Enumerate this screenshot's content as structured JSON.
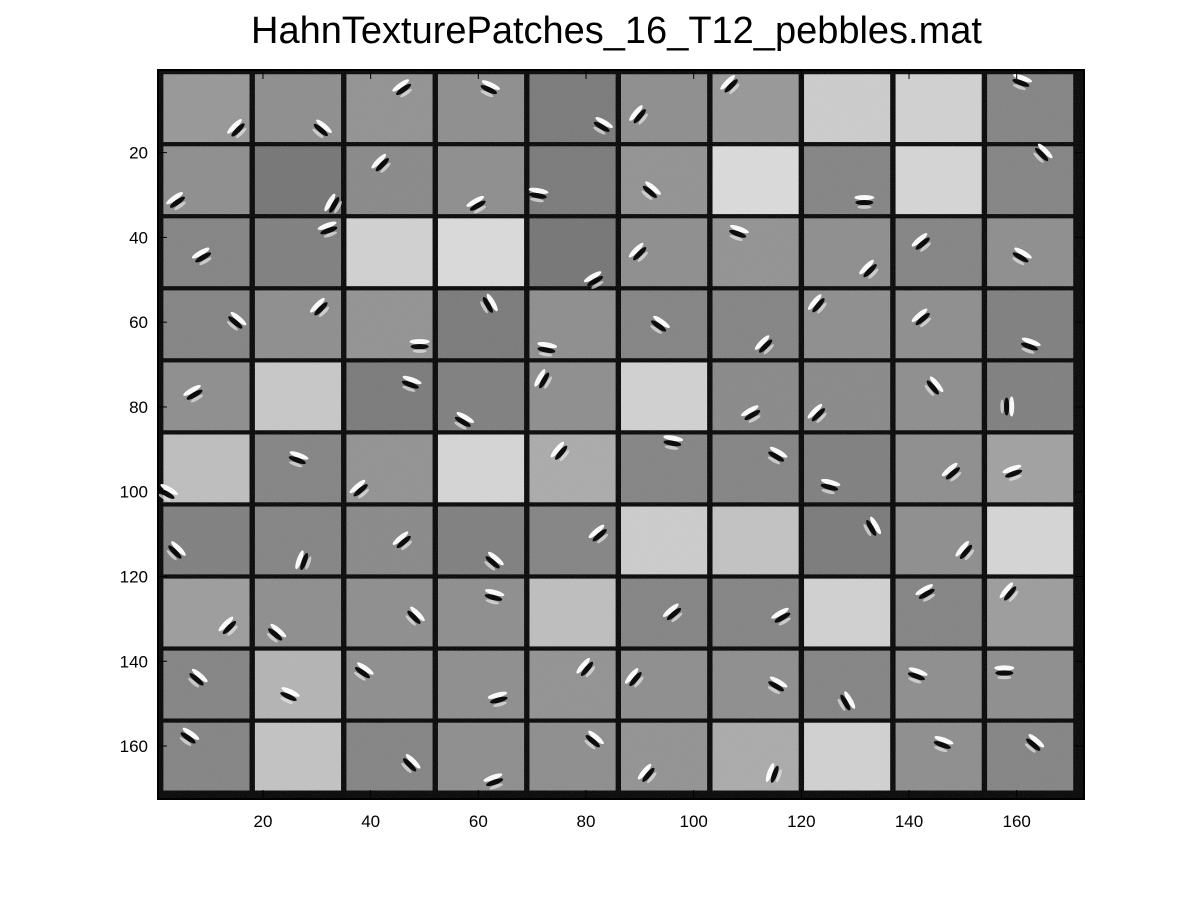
{
  "chart_data": {
    "type": "heatmap",
    "title": "HahnTexturePatches_16_T12_pebbles.mat",
    "xlabel": "",
    "ylabel": "",
    "xlim": [
      0.5,
      172.5
    ],
    "ylim": [
      0.5,
      172.5
    ],
    "x_reversed": false,
    "y_reversed": true,
    "colormap": "gray",
    "grid_rows": 10,
    "grid_cols": 10,
    "patch_size": 16,
    "separator": 1,
    "separator_color": "#000000",
    "x_ticks": [
      20,
      40,
      60,
      80,
      100,
      120,
      140,
      160
    ],
    "x_tick_labels": [
      "20",
      "40",
      "60",
      "80",
      "100",
      "120",
      "140",
      "160"
    ],
    "y_ticks": [
      20,
      40,
      60,
      80,
      100,
      120,
      140,
      160
    ],
    "y_tick_labels": [
      "20",
      "40",
      "60",
      "80",
      "100",
      "120",
      "140",
      "160"
    ],
    "patch_background_gray": [
      [
        150,
        140,
        145,
        140,
        120,
        140,
        150,
        205,
        210,
        130
      ],
      [
        140,
        115,
        135,
        140,
        120,
        145,
        220,
        130,
        215,
        130
      ],
      [
        130,
        125,
        210,
        220,
        115,
        140,
        145,
        140,
        130,
        140
      ],
      [
        130,
        140,
        145,
        120,
        140,
        130,
        130,
        140,
        140,
        125
      ],
      [
        140,
        200,
        120,
        125,
        140,
        210,
        135,
        135,
        140,
        125
      ],
      [
        190,
        130,
        145,
        215,
        170,
        130,
        130,
        125,
        140,
        160
      ],
      [
        125,
        130,
        135,
        125,
        130,
        205,
        195,
        120,
        140,
        215
      ],
      [
        155,
        140,
        140,
        140,
        190,
        130,
        130,
        210,
        130,
        155
      ],
      [
        130,
        180,
        140,
        140,
        145,
        140,
        140,
        130,
        140,
        140
      ],
      [
        130,
        195,
        130,
        140,
        140,
        145,
        170,
        210,
        140,
        130
      ]
    ],
    "filter_marks": [
      [
        {
          "r": 0,
          "c": 0,
          "u": 0.85,
          "v": 0.8,
          "a": -45
        },
        {
          "r": 0,
          "c": 1,
          "u": 0.78,
          "v": 0.8,
          "a": 40
        },
        {
          "r": 0,
          "c": 2,
          "u": 0.65,
          "v": 0.2,
          "a": -35
        },
        {
          "r": 0,
          "c": 3,
          "u": 0.6,
          "v": 0.2,
          "a": 25
        },
        {
          "r": 0,
          "c": 4,
          "u": 0.85,
          "v": 0.75,
          "a": 30
        },
        {
          "r": 0,
          "c": 5,
          "u": 0.2,
          "v": 0.6,
          "a": -50
        },
        {
          "r": 0,
          "c": 6,
          "u": 0.2,
          "v": 0.15,
          "a": -45
        },
        {
          "r": 0,
          "c": 9,
          "u": 0.4,
          "v": 0.1,
          "a": 20
        }
      ],
      [
        {
          "r": 1,
          "c": 0,
          "u": 0.15,
          "v": 0.8,
          "a": -35
        },
        {
          "r": 1,
          "c": 1,
          "u": 0.9,
          "v": 0.85,
          "a": -60
        },
        {
          "r": 1,
          "c": 2,
          "u": 0.4,
          "v": 0.25,
          "a": -45
        },
        {
          "r": 1,
          "c": 3,
          "u": 0.45,
          "v": 0.85,
          "a": -30
        },
        {
          "r": 1,
          "c": 4,
          "u": 0.1,
          "v": 0.7,
          "a": 10
        },
        {
          "r": 1,
          "c": 5,
          "u": 0.35,
          "v": 0.65,
          "a": 40
        },
        {
          "r": 1,
          "c": 7,
          "u": 0.7,
          "v": 0.8,
          "a": 0
        },
        {
          "r": 1,
          "c": 9,
          "u": 0.65,
          "v": 0.1,
          "a": 45
        }
      ],
      [
        {
          "r": 2,
          "c": 0,
          "u": 0.45,
          "v": 0.55,
          "a": -30
        },
        {
          "r": 2,
          "c": 1,
          "u": 0.85,
          "v": 0.15,
          "a": -20
        },
        {
          "r": 2,
          "c": 5,
          "u": 0.2,
          "v": 0.5,
          "a": -45
        },
        {
          "r": 2,
          "c": 6,
          "u": 0.3,
          "v": 0.2,
          "a": 20
        },
        {
          "r": 2,
          "c": 7,
          "u": 0.75,
          "v": 0.75,
          "a": -45
        },
        {
          "r": 2,
          "c": 8,
          "u": 0.3,
          "v": 0.35,
          "a": -40
        },
        {
          "r": 2,
          "c": 9,
          "u": 0.4,
          "v": 0.55,
          "a": 30
        },
        {
          "r": 2,
          "c": 4,
          "u": 0.75,
          "v": 0.9,
          "a": -30
        }
      ],
      [
        {
          "r": 3,
          "c": 0,
          "u": 0.85,
          "v": 0.45,
          "a": 40
        },
        {
          "r": 3,
          "c": 1,
          "u": 0.75,
          "v": 0.25,
          "a": -45
        },
        {
          "r": 3,
          "c": 2,
          "u": 0.85,
          "v": 0.8,
          "a": 0
        },
        {
          "r": 3,
          "c": 3,
          "u": 0.6,
          "v": 0.2,
          "a": 60
        },
        {
          "r": 3,
          "c": 4,
          "u": 0.2,
          "v": 0.85,
          "a": 10
        },
        {
          "r": 3,
          "c": 5,
          "u": 0.45,
          "v": 0.5,
          "a": 35
        },
        {
          "r": 3,
          "c": 6,
          "u": 0.6,
          "v": 0.8,
          "a": -45
        },
        {
          "r": 3,
          "c": 7,
          "u": 0.15,
          "v": 0.2,
          "a": -50
        },
        {
          "r": 3,
          "c": 8,
          "u": 0.3,
          "v": 0.4,
          "a": -40
        },
        {
          "r": 3,
          "c": 9,
          "u": 0.5,
          "v": 0.8,
          "a": 20
        }
      ],
      [
        {
          "r": 4,
          "c": 0,
          "u": 0.35,
          "v": 0.45,
          "a": -30
        },
        {
          "r": 4,
          "c": 2,
          "u": 0.75,
          "v": 0.3,
          "a": 20
        },
        {
          "r": 4,
          "c": 3,
          "u": 0.3,
          "v": 0.85,
          "a": 30
        },
        {
          "r": 4,
          "c": 4,
          "u": 0.15,
          "v": 0.25,
          "a": -60
        },
        {
          "r": 4,
          "c": 6,
          "u": 0.45,
          "v": 0.75,
          "a": -30
        },
        {
          "r": 4,
          "c": 7,
          "u": 0.15,
          "v": 0.75,
          "a": -45
        },
        {
          "r": 4,
          "c": 8,
          "u": 0.45,
          "v": 0.35,
          "a": 50
        },
        {
          "r": 4,
          "c": 9,
          "u": 0.25,
          "v": 0.65,
          "a": 90
        }
      ],
      [
        {
          "r": 5,
          "c": 0,
          "u": 0.05,
          "v": 0.85,
          "a": 30
        },
        {
          "r": 5,
          "c": 1,
          "u": 0.5,
          "v": 0.35,
          "a": 20
        },
        {
          "r": 5,
          "c": 2,
          "u": 0.15,
          "v": 0.8,
          "a": -40
        },
        {
          "r": 5,
          "c": 4,
          "u": 0.35,
          "v": 0.25,
          "a": -50
        },
        {
          "r": 5,
          "c": 5,
          "u": 0.6,
          "v": 0.1,
          "a": 10
        },
        {
          "r": 5,
          "c": 6,
          "u": 0.75,
          "v": 0.3,
          "a": 30
        },
        {
          "r": 5,
          "c": 7,
          "u": 0.3,
          "v": 0.75,
          "a": 15
        },
        {
          "r": 5,
          "c": 8,
          "u": 0.65,
          "v": 0.55,
          "a": -40
        },
        {
          "r": 5,
          "c": 9,
          "u": 0.3,
          "v": 0.55,
          "a": -20
        }
      ],
      [
        {
          "r": 6,
          "c": 0,
          "u": 0.15,
          "v": 0.65,
          "a": 45
        },
        {
          "r": 6,
          "c": 1,
          "u": 0.55,
          "v": 0.8,
          "a": -70
        },
        {
          "r": 6,
          "c": 2,
          "u": 0.65,
          "v": 0.5,
          "a": -40
        },
        {
          "r": 6,
          "c": 3,
          "u": 0.65,
          "v": 0.8,
          "a": 40
        },
        {
          "r": 6,
          "c": 4,
          "u": 0.8,
          "v": 0.4,
          "a": -40
        },
        {
          "r": 6,
          "c": 7,
          "u": 0.8,
          "v": 0.3,
          "a": 60
        },
        {
          "r": 6,
          "c": 8,
          "u": 0.8,
          "v": 0.65,
          "a": -50
        }
      ],
      [
        {
          "r": 7,
          "c": 0,
          "u": 0.75,
          "v": 0.7,
          "a": -45
        },
        {
          "r": 7,
          "c": 1,
          "u": 0.25,
          "v": 0.8,
          "a": 40
        },
        {
          "r": 7,
          "c": 2,
          "u": 0.8,
          "v": 0.55,
          "a": 45
        },
        {
          "r": 7,
          "c": 3,
          "u": 0.65,
          "v": 0.25,
          "a": 15
        },
        {
          "r": 7,
          "c": 5,
          "u": 0.6,
          "v": 0.5,
          "a": -40
        },
        {
          "r": 7,
          "c": 6,
          "u": 0.8,
          "v": 0.55,
          "a": -30
        },
        {
          "r": 7,
          "c": 8,
          "u": 0.35,
          "v": 0.2,
          "a": -30
        },
        {
          "r": 7,
          "c": 9,
          "u": 0.25,
          "v": 0.2,
          "a": -50
        }
      ],
      [
        {
          "r": 8,
          "c": 0,
          "u": 0.4,
          "v": 0.4,
          "a": 40
        },
        {
          "r": 8,
          "c": 1,
          "u": 0.4,
          "v": 0.65,
          "a": 25
        },
        {
          "r": 8,
          "c": 2,
          "u": 0.2,
          "v": 0.3,
          "a": 35
        },
        {
          "r": 8,
          "c": 3,
          "u": 0.7,
          "v": 0.7,
          "a": -15
        },
        {
          "r": 8,
          "c": 4,
          "u": 0.65,
          "v": 0.25,
          "a": -50
        },
        {
          "r": 8,
          "c": 5,
          "u": 0.15,
          "v": 0.4,
          "a": -50
        },
        {
          "r": 8,
          "c": 6,
          "u": 0.75,
          "v": 0.5,
          "a": 30
        },
        {
          "r": 8,
          "c": 7,
          "u": 0.5,
          "v": 0.75,
          "a": 60
        },
        {
          "r": 8,
          "c": 8,
          "u": 0.25,
          "v": 0.35,
          "a": 20
        },
        {
          "r": 8,
          "c": 9,
          "u": 0.2,
          "v": 0.3,
          "a": 0
        }
      ],
      [
        {
          "r": 9,
          "c": 0,
          "u": 0.3,
          "v": 0.2,
          "a": 35
        },
        {
          "r": 9,
          "c": 2,
          "u": 0.75,
          "v": 0.6,
          "a": 45
        },
        {
          "r": 9,
          "c": 3,
          "u": 0.65,
          "v": 0.85,
          "a": -20
        },
        {
          "r": 9,
          "c": 4,
          "u": 0.75,
          "v": 0.25,
          "a": 40
        },
        {
          "r": 9,
          "c": 5,
          "u": 0.3,
          "v": 0.75,
          "a": -50
        },
        {
          "r": 9,
          "c": 6,
          "u": 0.7,
          "v": 0.75,
          "a": -70
        },
        {
          "r": 9,
          "c": 8,
          "u": 0.55,
          "v": 0.3,
          "a": 20
        },
        {
          "r": 9,
          "c": 9,
          "u": 0.55,
          "v": 0.3,
          "a": 40
        }
      ]
    ]
  }
}
